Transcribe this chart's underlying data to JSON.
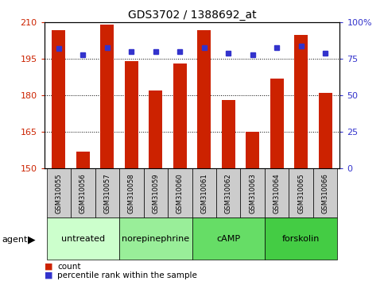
{
  "title": "GDS3702 / 1388692_at",
  "samples": [
    "GSM310055",
    "GSM310056",
    "GSM310057",
    "GSM310058",
    "GSM310059",
    "GSM310060",
    "GSM310061",
    "GSM310062",
    "GSM310063",
    "GSM310064",
    "GSM310065",
    "GSM310066"
  ],
  "counts": [
    207,
    157,
    209,
    194,
    182,
    193,
    207,
    178,
    165,
    187,
    205,
    181
  ],
  "percentiles": [
    82,
    78,
    83,
    80,
    80,
    80,
    83,
    79,
    78,
    83,
    84,
    79
  ],
  "groups": [
    {
      "label": "untreated",
      "start": 0,
      "end": 3,
      "color": "#ccffcc"
    },
    {
      "label": "norepinephrine",
      "start": 3,
      "end": 6,
      "color": "#99ee99"
    },
    {
      "label": "cAMP",
      "start": 6,
      "end": 9,
      "color": "#66dd66"
    },
    {
      "label": "forskolin",
      "start": 9,
      "end": 12,
      "color": "#44cc44"
    }
  ],
  "ylim_left": [
    150,
    210
  ],
  "ylim_right": [
    0,
    100
  ],
  "yticks_left": [
    150,
    165,
    180,
    195,
    210
  ],
  "yticks_right": [
    0,
    25,
    50,
    75,
    100
  ],
  "ytick_labels_right": [
    "0",
    "25",
    "50",
    "75",
    "100%"
  ],
  "bar_color": "#cc2200",
  "dot_color": "#3333cc",
  "bar_width": 0.55,
  "left_tick_color": "#cc2200",
  "right_tick_color": "#3333cc",
  "agent_label": "agent",
  "legend_count": "count",
  "legend_percentile": "percentile rank within the sample",
  "sample_bg_color": "#cccccc",
  "fig_width": 4.83,
  "fig_height": 3.54,
  "dpi": 100
}
